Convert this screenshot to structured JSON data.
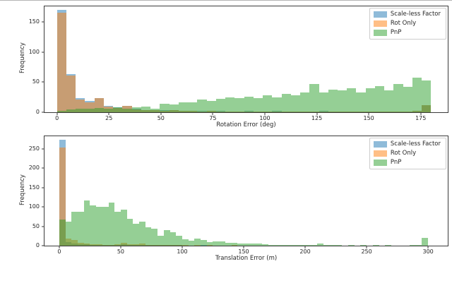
{
  "figure": {
    "kind": "matplotlib-histogram-figure",
    "background": "#ffffff"
  },
  "legend": {
    "position": "upper-right",
    "entries": [
      "Scale-less Factor",
      "Rot Only",
      "PnP"
    ],
    "colors": [
      "#1f77b4",
      "#ff7f0e",
      "#2ca02c"
    ]
  },
  "chart_data": [
    {
      "type": "bar",
      "title": "",
      "xlabel": "Rotation Error (deg)",
      "ylabel": "Frequency",
      "xlim": [
        -6,
        188
      ],
      "ylim": [
        0,
        176
      ],
      "xticks": [
        0,
        25,
        50,
        75,
        100,
        125,
        150,
        175
      ],
      "yticks": [
        0,
        50,
        100,
        150
      ],
      "grid": false,
      "legend_position": "upper-right",
      "bin_start": 0,
      "bin_width": 4.5,
      "fill_alpha": 0.5,
      "series": [
        {
          "name": "Scale-less Factor",
          "color": "#1f77b4",
          "values": [
            170,
            63,
            24,
            19,
            23,
            11,
            8,
            10,
            6,
            4,
            3,
            3,
            4,
            2,
            2,
            2,
            2,
            2,
            1,
            1,
            2,
            1,
            1,
            2,
            1,
            1,
            1,
            1,
            2,
            1,
            1,
            1,
            1,
            1,
            1,
            1,
            1,
            1,
            2,
            12
          ]
        },
        {
          "name": "Rot Only",
          "color": "#ff7f0e",
          "values": [
            165,
            61,
            21,
            16,
            23,
            9,
            7,
            10,
            5,
            3,
            3,
            2,
            3,
            2,
            2,
            1,
            2,
            1,
            1,
            1,
            1,
            1,
            1,
            1,
            1,
            1,
            1,
            1,
            1,
            1,
            1,
            1,
            1,
            1,
            1,
            1,
            1,
            1,
            2,
            12
          ]
        },
        {
          "name": "PnP",
          "color": "#2ca02c",
          "values": [
            2,
            5,
            6,
            6,
            7,
            6,
            8,
            6,
            8,
            9,
            6,
            14,
            13,
            16,
            17,
            21,
            19,
            22,
            25,
            23,
            26,
            24,
            28,
            25,
            30,
            28,
            33,
            47,
            33,
            37,
            36,
            40,
            33,
            40,
            43,
            36,
            47,
            42,
            57,
            53
          ]
        }
      ]
    },
    {
      "type": "bar",
      "title": "",
      "xlabel": "Translation Error (m)",
      "ylabel": "Frequency",
      "xlim": [
        -12,
        316
      ],
      "ylim": [
        0,
        283
      ],
      "xticks": [
        0,
        50,
        100,
        150,
        200,
        250,
        300
      ],
      "yticks": [
        0,
        50,
        100,
        150,
        200,
        250
      ],
      "grid": false,
      "legend_position": "upper-right",
      "bin_start": 0,
      "bin_width": 5,
      "fill_alpha": 0.5,
      "series": [
        {
          "name": "Scale-less Factor",
          "color": "#1f77b4",
          "values": [
            273,
            10,
            6,
            4,
            3,
            2,
            2,
            1,
            1,
            2,
            3,
            2,
            2,
            2,
            1,
            1,
            1,
            1,
            1,
            1,
            0,
            0,
            0,
            1,
            0,
            0,
            0,
            0,
            0,
            0,
            0,
            0,
            0,
            0,
            0,
            0,
            0,
            0,
            0,
            0,
            0,
            0,
            0,
            0,
            0,
            0,
            0,
            0,
            0,
            0,
            0,
            0,
            0,
            0,
            0,
            0,
            0,
            0,
            0,
            0
          ]
        },
        {
          "name": "Rot Only",
          "color": "#ff7f0e",
          "values": [
            253,
            18,
            14,
            8,
            5,
            4,
            3,
            2,
            2,
            3,
            8,
            4,
            3,
            5,
            2,
            2,
            1,
            1,
            1,
            1,
            1,
            0,
            1,
            0,
            1,
            0,
            0,
            0,
            1,
            0,
            0,
            0,
            0,
            0,
            0,
            0,
            0,
            0,
            0,
            0,
            0,
            0,
            0,
            0,
            0,
            0,
            0,
            0,
            0,
            0,
            0,
            0,
            0,
            0,
            0,
            0,
            0,
            0,
            0,
            0
          ]
        },
        {
          "name": "PnP",
          "color": "#2ca02c",
          "values": [
            67,
            62,
            88,
            88,
            116,
            105,
            100,
            100,
            112,
            88,
            93,
            70,
            56,
            62,
            48,
            44,
            26,
            40,
            35,
            26,
            16,
            13,
            19,
            14,
            10,
            11,
            11,
            8,
            7,
            5,
            6,
            6,
            5,
            3,
            2,
            2,
            2,
            1,
            1,
            2,
            1,
            1,
            5,
            2,
            1,
            1,
            0,
            1,
            0,
            1,
            0,
            1,
            0,
            1,
            0,
            0,
            0,
            1,
            2,
            20
          ]
        }
      ]
    }
  ]
}
